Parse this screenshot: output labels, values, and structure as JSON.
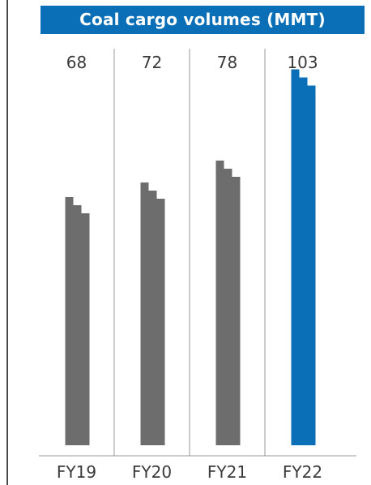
{
  "chart_data": {
    "type": "bar",
    "title": "Coal cargo volumes (MMT)",
    "categories": [
      "FY19",
      "FY20",
      "FY21",
      "FY22"
    ],
    "values": [
      68,
      72,
      78,
      103
    ],
    "value_labels": [
      "68",
      "72",
      "78",
      "103"
    ],
    "xlabel": "",
    "ylabel": "",
    "ylim": [
      0,
      105
    ],
    "grid": false,
    "legend": "none",
    "colors": {
      "default_bar": "#6d6d6d",
      "highlight_bar": "#0a6fb7",
      "banner": "#0a6fb7",
      "separator": "#9a9a9a"
    },
    "highlight_index": 3
  }
}
